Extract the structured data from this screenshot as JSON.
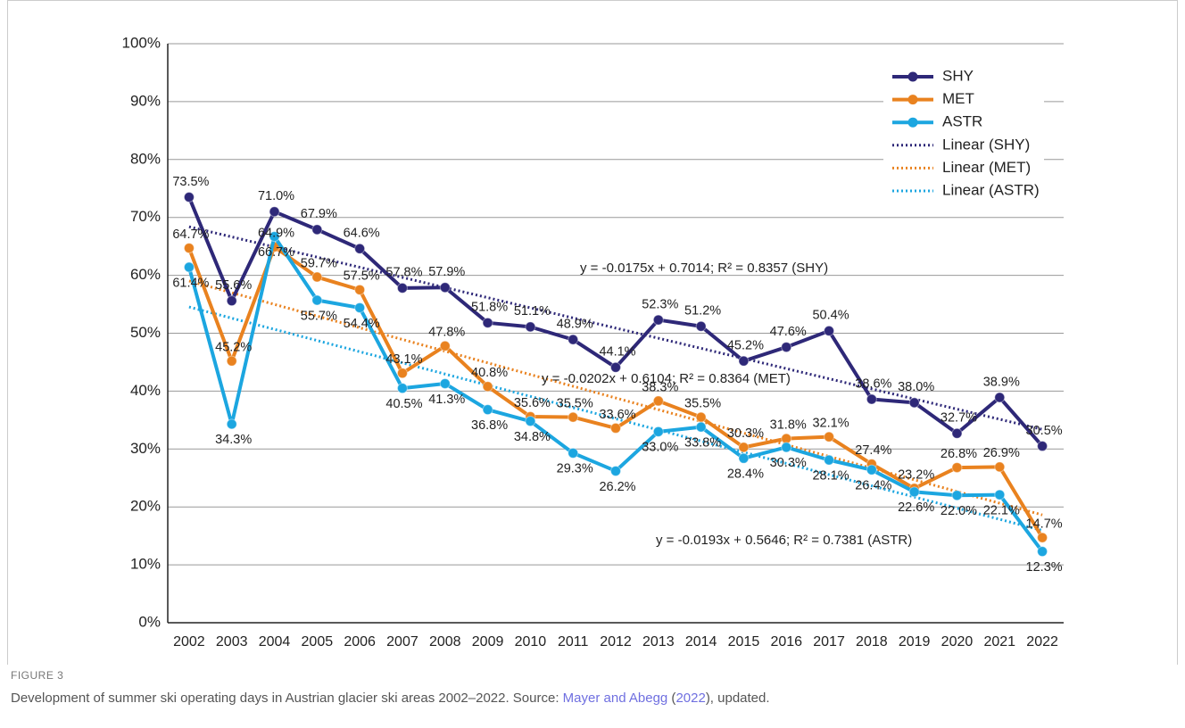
{
  "chart_data": {
    "type": "line",
    "categories": [
      "2002",
      "2003",
      "2004",
      "2005",
      "2006",
      "2007",
      "2008",
      "2009",
      "2010",
      "2011",
      "2012",
      "2013",
      "2014",
      "2015",
      "2016",
      "2017",
      "2018",
      "2019",
      "2020",
      "2021",
      "2022"
    ],
    "ylim": [
      0,
      1
    ],
    "yticks": [
      {
        "value": 0,
        "label": "0%"
      },
      {
        "value": 0.1,
        "label": "10%"
      },
      {
        "value": 0.2,
        "label": "20%"
      },
      {
        "value": 0.3,
        "label": "30%"
      },
      {
        "value": 0.4,
        "label": "40%"
      },
      {
        "value": 0.5,
        "label": "50%"
      },
      {
        "value": 0.6,
        "label": "60%"
      },
      {
        "value": 0.7,
        "label": "70%"
      },
      {
        "value": 0.8,
        "label": "80%"
      },
      {
        "value": 0.9,
        "label": "90%"
      },
      {
        "value": 1,
        "label": "100%"
      }
    ],
    "grid": true,
    "legend": "upper right",
    "series": [
      {
        "name": "SHY",
        "color": "#2e2878",
        "values": [
          0.735,
          0.556,
          0.71,
          0.679,
          0.646,
          0.578,
          0.579,
          0.518,
          0.511,
          0.489,
          0.441,
          0.523,
          0.512,
          0.452,
          0.476,
          0.504,
          0.386,
          0.38,
          0.327,
          0.389,
          0.305
        ],
        "value_labels": [
          "73.5%",
          "55.6%",
          "71.0%",
          "67.9%",
          "64.6%",
          "57.8%",
          "57.9%",
          "51.8%",
          "51.1%",
          "48.9%",
          "44.1%",
          "52.3%",
          "51.2%",
          "45.2%",
          "47.6%",
          "50.4%",
          "38.6%",
          "38.0%",
          "32.7%",
          "38.9%",
          "30.5%"
        ]
      },
      {
        "name": "MET",
        "color": "#e9821f",
        "values": [
          0.647,
          0.452,
          0.649,
          0.597,
          0.575,
          0.431,
          0.478,
          0.408,
          0.356,
          0.355,
          0.336,
          0.383,
          0.355,
          0.303,
          0.318,
          0.321,
          0.274,
          0.232,
          0.268,
          0.269,
          0.147
        ],
        "value_labels": [
          "64.7%",
          "45.2%",
          "64.9%",
          "59.7%",
          "57.5%",
          "43.1%",
          "47.8%",
          "40.8%",
          "35.6%",
          "35.5%",
          "33.6%",
          "38.3%",
          "35.5%",
          "30.3%",
          "31.8%",
          "32.1%",
          "27.4%",
          "23.2%",
          "26.8%",
          "26.9%",
          "14.7%"
        ]
      },
      {
        "name": "ASTR",
        "color": "#1ca6e0",
        "values": [
          0.614,
          0.343,
          0.667,
          0.557,
          0.544,
          0.405,
          0.413,
          0.368,
          0.348,
          0.293,
          0.262,
          0.33,
          0.338,
          0.284,
          0.303,
          0.281,
          0.264,
          0.226,
          0.22,
          0.221,
          0.123
        ],
        "value_labels": [
          "61.4%",
          "34.3%",
          "66.7%",
          "55.7%",
          "54.4%",
          "40.5%",
          "41.3%",
          "36.8%",
          "34.8%",
          "29.3%",
          "26.2%",
          "33.0%",
          "33.8%",
          "28.4%",
          "30.3%",
          "28.1%",
          "26.4%",
          "22.6%",
          "22.0%",
          "22.1%",
          "12.3%"
        ]
      }
    ],
    "trend_lines": [
      {
        "name": "Linear (SHY)",
        "color": "#2e2878",
        "slope": -0.0175,
        "intercept": 0.7014,
        "r2": 0.8357,
        "equation": "y = -0.0175x + 0.7014; R² = 0.8357 (SHY)"
      },
      {
        "name": "Linear (MET)",
        "color": "#e9821f",
        "slope": -0.0202,
        "intercept": 0.6104,
        "r2": 0.8364,
        "equation": "y = -0.0202x + 0.6104; R² = 0.8364 (MET)"
      },
      {
        "name": "Linear (ASTR)",
        "color": "#1ca6e0",
        "slope": -0.0193,
        "intercept": 0.5646,
        "r2": 0.7381,
        "equation": "y = -0.0193x + 0.5646; R² = 0.7381 (ASTR)"
      }
    ]
  },
  "caption": {
    "figure": "FIGURE 3",
    "text": "Development of summer ski operating days in Austrian glacier ski areas 2002–2022. Source: ",
    "author_link": "Mayer and Abegg",
    "open": " (",
    "year_link": "2022",
    "close": "), updated."
  }
}
